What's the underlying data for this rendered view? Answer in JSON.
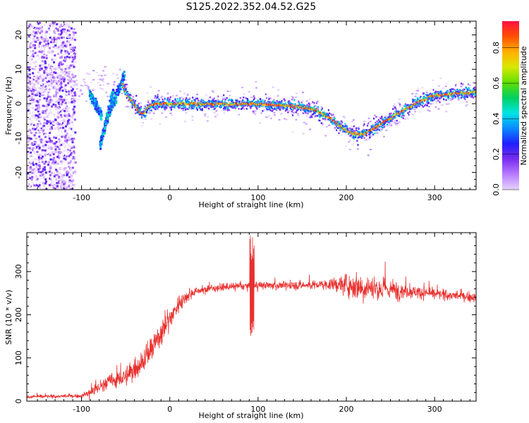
{
  "title": "S125.2022.352.04.52.G25",
  "colors": {
    "trace": "#e8302e",
    "colormap": [
      "#ffffff",
      "#e7d3ff",
      "#b77cff",
      "#7b2cf0",
      "#1f1fff",
      "#0a8aff",
      "#00e5e5",
      "#00d060",
      "#60e000",
      "#d8e800",
      "#ffb000",
      "#ff5000",
      "#ff1040"
    ]
  },
  "chart_data": [
    {
      "type": "heatmap",
      "title": "S125.2022.352.04.52.G25",
      "xlabel": "Height of straight line (km)",
      "ylabel": "Frequency (Hz)",
      "xlim": [
        -162,
        347
      ],
      "ylim": [
        -25,
        24
      ],
      "xticks": [
        -100,
        0,
        100,
        200,
        300
      ],
      "yticks": [
        -20,
        -10,
        0,
        10,
        20
      ],
      "xtick_labels": [
        "-100",
        "0",
        "100",
        "200",
        "300"
      ],
      "ytick_labels": [
        "-20",
        "-10",
        "0",
        "10",
        "20"
      ],
      "colorbar": {
        "label": "Normalized spectral amplitude",
        "range": [
          0,
          0.95
        ],
        "ticks": [
          0.0,
          0.2,
          0.4,
          0.6,
          0.8
        ],
        "tick_labels": [
          "0.0",
          "0.2",
          "0.4",
          "0.6",
          "0.8"
        ]
      },
      "ridge": {
        "x": [
          -55,
          -48,
          -42,
          -36,
          -30,
          -25,
          -20,
          -10,
          0,
          50,
          100,
          130,
          150,
          165,
          180,
          195,
          205,
          215,
          225,
          240,
          260,
          280,
          300,
          320,
          347
        ],
        "y": [
          6,
          2,
          0,
          -2,
          -3,
          -1,
          0,
          0,
          0,
          0,
          0,
          -0.5,
          -1,
          -2,
          -4,
          -7,
          -8.5,
          -9,
          -8,
          -5.5,
          -2.5,
          0.5,
          2.5,
          3,
          3.5
        ]
      },
      "early_segments": [
        {
          "x": [
            -92,
            -78
          ],
          "y": [
            3,
            -3
          ]
        },
        {
          "x": [
            -80,
            -65
          ],
          "y": [
            -12,
            4
          ]
        },
        {
          "x": [
            -72,
            -52
          ],
          "y": [
            -4,
            9
          ]
        }
      ],
      "noise_region_x": [
        -162,
        -108
      ]
    },
    {
      "type": "line",
      "xlabel": "Height of straight line (km)",
      "ylabel": "SNR (10 * v/v)",
      "xlim": [
        -162,
        347
      ],
      "ylim": [
        0,
        390
      ],
      "xticks": [
        -100,
        0,
        100,
        200,
        300
      ],
      "yticks": [
        0,
        100,
        200,
        300
      ],
      "xtick_labels": [
        "-100",
        "0",
        "100",
        "200",
        "300"
      ],
      "ytick_labels": [
        "0",
        "100",
        "200",
        "300"
      ],
      "trend": {
        "x": [
          -162,
          -100,
          -90,
          -70,
          -50,
          -30,
          -20,
          -10,
          0,
          10,
          20,
          30,
          50,
          80,
          100,
          150,
          180,
          200,
          220,
          240,
          270,
          300,
          347
        ],
        "y": [
          10,
          12,
          20,
          45,
          55,
          95,
          120,
          160,
          190,
          225,
          245,
          255,
          262,
          266,
          268,
          268,
          270,
          270,
          265,
          260,
          255,
          248,
          240
        ]
      },
      "noise_amp": {
        "x": [
          -162,
          -100,
          -90,
          -60,
          -30,
          -10,
          10,
          30,
          80,
          180,
          210,
          240,
          270,
          300,
          347
        ],
        "y": [
          6,
          6,
          20,
          30,
          45,
          50,
          30,
          14,
          12,
          18,
          50,
          45,
          25,
          18,
          16
        ]
      },
      "spike": {
        "x": 93,
        "peak": 385,
        "trough": 148
      }
    }
  ]
}
